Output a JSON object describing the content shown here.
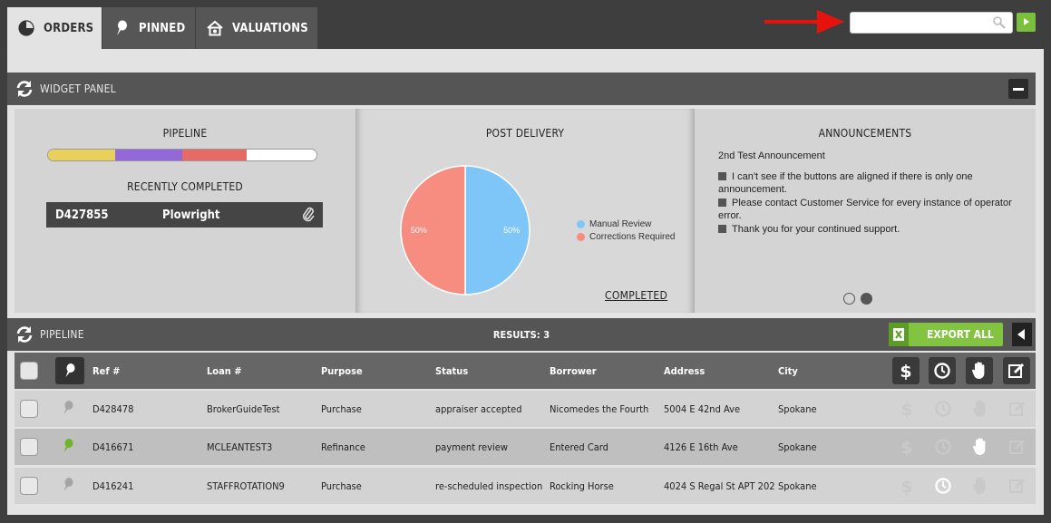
{
  "tabs": [
    {
      "label": "ORDERS",
      "icon": "pie-chart-icon",
      "active": true
    },
    {
      "label": "PINNED",
      "icon": "pin-icon",
      "active": false
    },
    {
      "label": "VALUATIONS",
      "icon": "house-icon",
      "active": false
    }
  ],
  "search": {
    "value": "",
    "placeholder": ""
  },
  "widget_panel": {
    "title": "WIDGET PANEL",
    "pipeline": {
      "title": "PIPELINE",
      "progress_colors": [
        "#e8d05a",
        "#9468d8",
        "#e86a64",
        "#ffffff"
      ],
      "recently_completed_title": "RECENTLY COMPLETED",
      "recent": {
        "ref": "D427855",
        "name": "Plowright"
      }
    },
    "post_delivery": {
      "title": "POST DELIVERY",
      "completed_link": "COMPLETED",
      "legend": [
        {
          "label": "Manual Review",
          "color": "#7ec6f7"
        },
        {
          "label": "Corrections Required",
          "color": "#f78c80"
        }
      ]
    },
    "announcements": {
      "title": "ANNOUNCEMENTS",
      "subtitle": "2nd Test Announcement",
      "items": [
        "I can't see if the buttons are aligned if there is only one announcement.",
        "Please contact Customer Service for every instance of operator error.",
        "Thank you for your continued support."
      ],
      "pages": 2,
      "active_page": 2
    }
  },
  "chart_data": {
    "type": "pie",
    "labels": [
      "Manual Review",
      "Corrections Required"
    ],
    "values": [
      50,
      50
    ],
    "data_labels": [
      "50%",
      "50%"
    ],
    "colors": [
      "#7ec6f7",
      "#f78c80"
    ]
  },
  "pipeline": {
    "title": "PIPELINE",
    "results": "RESULTS: 3",
    "export_label": "EXPORT ALL",
    "columns": [
      "Ref #",
      "Loan #",
      "Purpose",
      "Status",
      "Borrower",
      "Address",
      "City"
    ],
    "rows": [
      {
        "pinned": false,
        "ref": "D428478",
        "loan": "BrokerGuideTest",
        "purpose": "Purchase",
        "status": "appraiser accepted",
        "borrower": "Nicomedes the Fourth",
        "address": "5004 E 42nd Ave",
        "city": "Spokane",
        "active_icon": ""
      },
      {
        "pinned": true,
        "ref": "D416671",
        "loan": "MCLEANTEST3",
        "purpose": "Refinance",
        "status": "payment review",
        "borrower": "Entered Card",
        "address": "4126 E 16th Ave",
        "city": "Spokane",
        "active_icon": "hold"
      },
      {
        "pinned": false,
        "ref": "D416241",
        "loan": "STAFFROTATION9",
        "purpose": "Purchase",
        "status": "re-scheduled inspection",
        "borrower": "Rocking Horse",
        "address": "4024 S Regal St APT 202",
        "city": "Spokane",
        "active_icon": "clock"
      }
    ]
  }
}
